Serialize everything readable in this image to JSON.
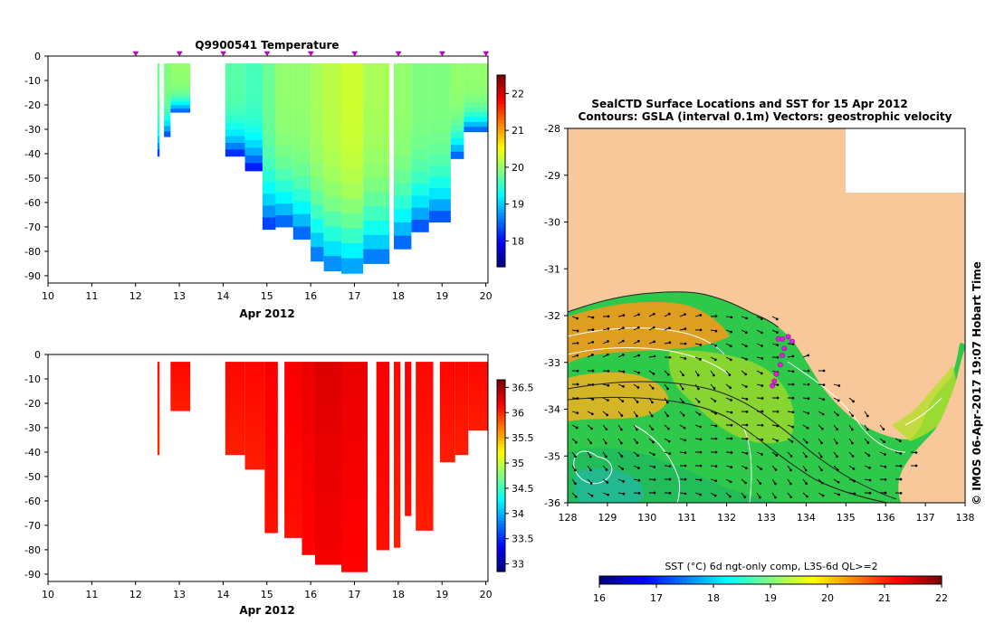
{
  "chart_data": [
    {
      "id": "temperature-section",
      "type": "heatmap",
      "title": "Q9900541  Temperature",
      "xlabel": "Apr 2012",
      "ylabel": "",
      "x_ticks": [
        10,
        11,
        12,
        13,
        14,
        15,
        16,
        17,
        18,
        19,
        20
      ],
      "xlim": [
        10,
        20.05
      ],
      "y_ticks": [
        0,
        -10,
        -20,
        -30,
        -40,
        -50,
        -60,
        -70,
        -80,
        -90
      ],
      "ylim": [
        -93,
        0
      ],
      "profile_markers_x": [
        12,
        13,
        14,
        15,
        16,
        17,
        18,
        19,
        20
      ],
      "colorbar": {
        "ticks": [
          18,
          19,
          20,
          21,
          22
        ],
        "range": [
          17.3,
          22.5
        ],
        "palette": "jet"
      },
      "profiles": [
        {
          "x0": 12.5,
          "x1": 12.55,
          "bottom": -41,
          "value": 19.8
        },
        {
          "x0": 12.65,
          "x1": 12.8,
          "bottom": -33,
          "value": 19.9
        },
        {
          "x0": 12.8,
          "x1": 13.25,
          "bottom": -23,
          "value": 20.0
        },
        {
          "x0": 14.05,
          "x1": 14.5,
          "bottom": -41,
          "value": 19.7
        },
        {
          "x0": 14.5,
          "x1": 14.9,
          "bottom": -47,
          "value": 19.6
        },
        {
          "x0": 14.9,
          "x1": 15.2,
          "bottom": -71,
          "value": 19.8
        },
        {
          "x0": 15.2,
          "x1": 15.6,
          "bottom": -70,
          "value": 20.0
        },
        {
          "x0": 15.6,
          "x1": 16.0,
          "bottom": -75,
          "value": 20.0
        },
        {
          "x0": 16.0,
          "x1": 16.3,
          "bottom": -84,
          "value": 20.1
        },
        {
          "x0": 16.3,
          "x1": 16.7,
          "bottom": -88,
          "value": 20.2
        },
        {
          "x0": 16.7,
          "x1": 17.2,
          "bottom": -89,
          "value": 20.3
        },
        {
          "x0": 17.2,
          "x1": 17.8,
          "bottom": -85,
          "value": 20.1
        },
        {
          "x0": 17.9,
          "x1": 18.3,
          "bottom": -79,
          "value": 20.0
        },
        {
          "x0": 18.3,
          "x1": 18.7,
          "bottom": -72,
          "value": 19.9
        },
        {
          "x0": 18.7,
          "x1": 19.2,
          "bottom": -68,
          "value": 19.9
        },
        {
          "x0": 19.2,
          "x1": 19.5,
          "bottom": -42,
          "value": 20.0
        },
        {
          "x0": 19.5,
          "x1": 20.05,
          "bottom": -31,
          "value": 20.0
        }
      ]
    },
    {
      "id": "salinity-section",
      "type": "heatmap",
      "title": "",
      "xlabel": "Apr 2012",
      "ylabel": "",
      "x_ticks": [
        10,
        11,
        12,
        13,
        14,
        15,
        16,
        17,
        18,
        19,
        20
      ],
      "xlim": [
        10,
        20.05
      ],
      "y_ticks": [
        0,
        -10,
        -20,
        -30,
        -40,
        -50,
        -60,
        -70,
        -80,
        -90
      ],
      "ylim": [
        -93,
        0
      ],
      "colorbar": {
        "ticks": [
          33,
          33.5,
          34,
          34.5,
          35,
          35.5,
          36,
          36.5
        ],
        "range": [
          32.85,
          36.65
        ],
        "palette": "jet"
      },
      "profiles": [
        {
          "x0": 12.5,
          "x1": 12.55,
          "bottom": -41,
          "value": 36.1
        },
        {
          "x0": 12.8,
          "x1": 13.25,
          "bottom": -23,
          "value": 36.15
        },
        {
          "x0": 14.05,
          "x1": 14.5,
          "bottom": -41,
          "value": 36.15
        },
        {
          "x0": 14.5,
          "x1": 14.95,
          "bottom": -47,
          "value": 36.15
        },
        {
          "x0": 14.95,
          "x1": 15.25,
          "bottom": -73,
          "value": 36.2
        },
        {
          "x0": 15.4,
          "x1": 15.8,
          "bottom": -75,
          "value": 36.2
        },
        {
          "x0": 15.8,
          "x1": 16.1,
          "bottom": -82,
          "value": 36.25
        },
        {
          "x0": 16.1,
          "x1": 16.7,
          "bottom": -86,
          "value": 36.3
        },
        {
          "x0": 16.7,
          "x1": 17.3,
          "bottom": -89,
          "value": 36.25
        },
        {
          "x0": 17.5,
          "x1": 17.8,
          "bottom": -80,
          "value": 36.2
        },
        {
          "x0": 17.9,
          "x1": 18.05,
          "bottom": -79,
          "value": 36.15
        },
        {
          "x0": 18.15,
          "x1": 18.3,
          "bottom": -66,
          "value": 36.2
        },
        {
          "x0": 18.4,
          "x1": 18.8,
          "bottom": -72,
          "value": 36.15
        },
        {
          "x0": 18.95,
          "x1": 19.3,
          "bottom": -44,
          "value": 36.15
        },
        {
          "x0": 19.3,
          "x1": 19.6,
          "bottom": -41,
          "value": 36.15
        },
        {
          "x0": 19.6,
          "x1": 20.05,
          "bottom": -31,
          "value": 36.15
        }
      ]
    },
    {
      "id": "sst-map",
      "type": "heatmap",
      "title": "SealCTD Surface Locations and SST for 15 Apr 2012",
      "subtitle": "Contours: GSLA (interval 0.1m) Vectors: geostrophic velocity",
      "xlabel": "",
      "ylabel": "",
      "x_ticks": [
        128,
        129,
        130,
        131,
        132,
        133,
        134,
        135,
        136,
        137,
        138
      ],
      "xlim": [
        128,
        138
      ],
      "y_ticks": [
        -28,
        -29,
        -30,
        -31,
        -32,
        -33,
        -34,
        -35,
        -36
      ],
      "ylim": [
        -36,
        -28
      ],
      "colorbar": {
        "label": "SST (°C) 6d ngt-only comp, L3S-6d QL>=2",
        "ticks": [
          16,
          17,
          18,
          19,
          20,
          21,
          22
        ],
        "range": [
          16,
          22
        ],
        "palette": "jet"
      },
      "ctd_surface_locations": [
        {
          "lon": 133.3,
          "lat": -32.5
        },
        {
          "lon": 133.4,
          "lat": -32.5
        },
        {
          "lon": 133.55,
          "lat": -32.45
        },
        {
          "lon": 133.65,
          "lat": -32.55
        },
        {
          "lon": 133.45,
          "lat": -32.7
        },
        {
          "lon": 133.4,
          "lat": -32.85
        },
        {
          "lon": 133.35,
          "lat": -33.05
        },
        {
          "lon": 133.25,
          "lat": -33.25
        },
        {
          "lon": 133.2,
          "lat": -33.4
        },
        {
          "lon": 133.15,
          "lat": -33.5
        }
      ],
      "credit": "© IMOS 06-Apr-2017 19:07 Hobart Time"
    }
  ]
}
